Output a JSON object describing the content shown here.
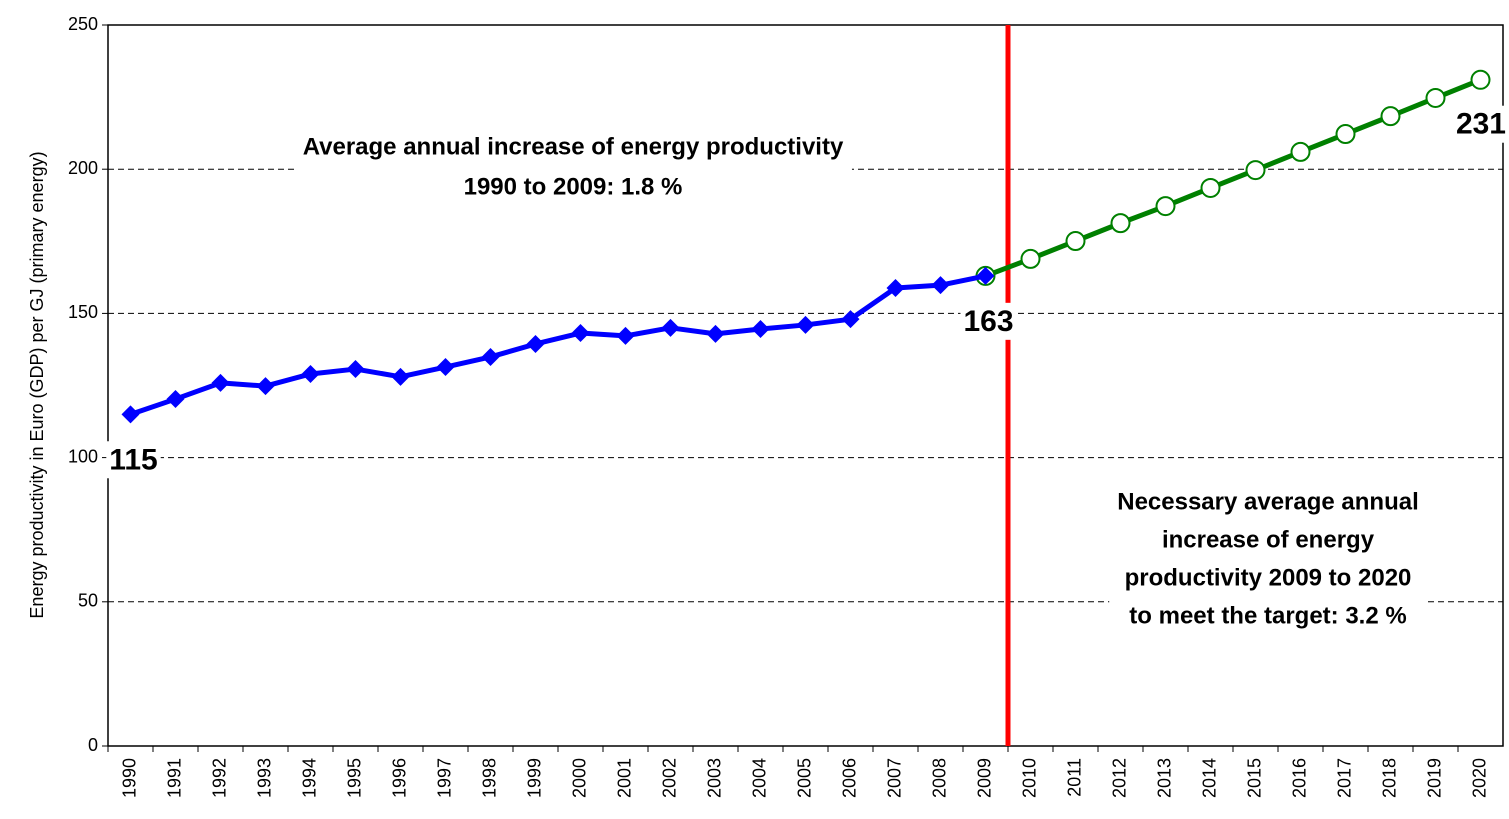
{
  "chart_data": {
    "type": "line",
    "y_label": "Energy productivity in  Euro (GDP) per GJ (primary energy)",
    "categories": [
      "1990",
      "1991",
      "1992",
      "1993",
      "1994",
      "1995",
      "1996",
      "1997",
      "1998",
      "1999",
      "2000",
      "2001",
      "2002",
      "2003",
      "2004",
      "2005",
      "2006",
      "2007",
      "2008",
      "2009",
      "2010",
      "2011",
      "2012",
      "2013",
      "2014",
      "2015",
      "2016",
      "2017",
      "2018",
      "2019",
      "2020"
    ],
    "series": [
      {
        "color": "#0000ff",
        "marker": "diamond",
        "values": [
          115,
          120.3,
          125.9,
          124.8,
          129,
          130.7,
          128,
          131.4,
          134.9,
          139.4,
          143.2,
          142.2,
          145,
          142.9,
          144.6,
          146,
          148,
          158.8,
          159.8,
          163,
          null,
          null,
          null,
          null,
          null,
          null,
          null,
          null,
          null,
          null,
          null
        ],
        "value_labels": [
          "115",
          null,
          null,
          null,
          null,
          null,
          null,
          null,
          null,
          null,
          null,
          null,
          null,
          null,
          null,
          null,
          null,
          null,
          null,
          "163",
          null,
          null,
          null,
          null,
          null,
          null,
          null,
          null,
          null,
          null,
          null
        ]
      },
      {
        "color": "#008000",
        "marker": "circle",
        "values": [
          null,
          null,
          null,
          null,
          null,
          null,
          null,
          null,
          null,
          null,
          null,
          null,
          null,
          null,
          null,
          null,
          null,
          null,
          null,
          163,
          168.9,
          175.1,
          181.3,
          187.2,
          193.5,
          199.7,
          206,
          212.2,
          218.4,
          224.7,
          231
        ],
        "value_labels": [
          null,
          null,
          null,
          null,
          null,
          null,
          null,
          null,
          null,
          null,
          null,
          null,
          null,
          null,
          null,
          null,
          null,
          null,
          null,
          null,
          null,
          null,
          null,
          null,
          null,
          null,
          null,
          null,
          null,
          null,
          "231"
        ]
      }
    ],
    "divider_color": "#ff0000",
    "annotations": [
      {
        "lines": [
          "Average annual increase of energy productivity",
          "1990 to 2009: 1.8 %"
        ]
      },
      {
        "lines": [
          "Necessary average annual",
          "increase of energy",
          "productivity 2009 to 2020",
          "to meet the target: 3.2 %"
        ]
      }
    ],
    "ylim": [
      0,
      250
    ],
    "yticks": [
      0,
      50,
      100,
      150,
      200,
      250
    ],
    "grid": true
  }
}
